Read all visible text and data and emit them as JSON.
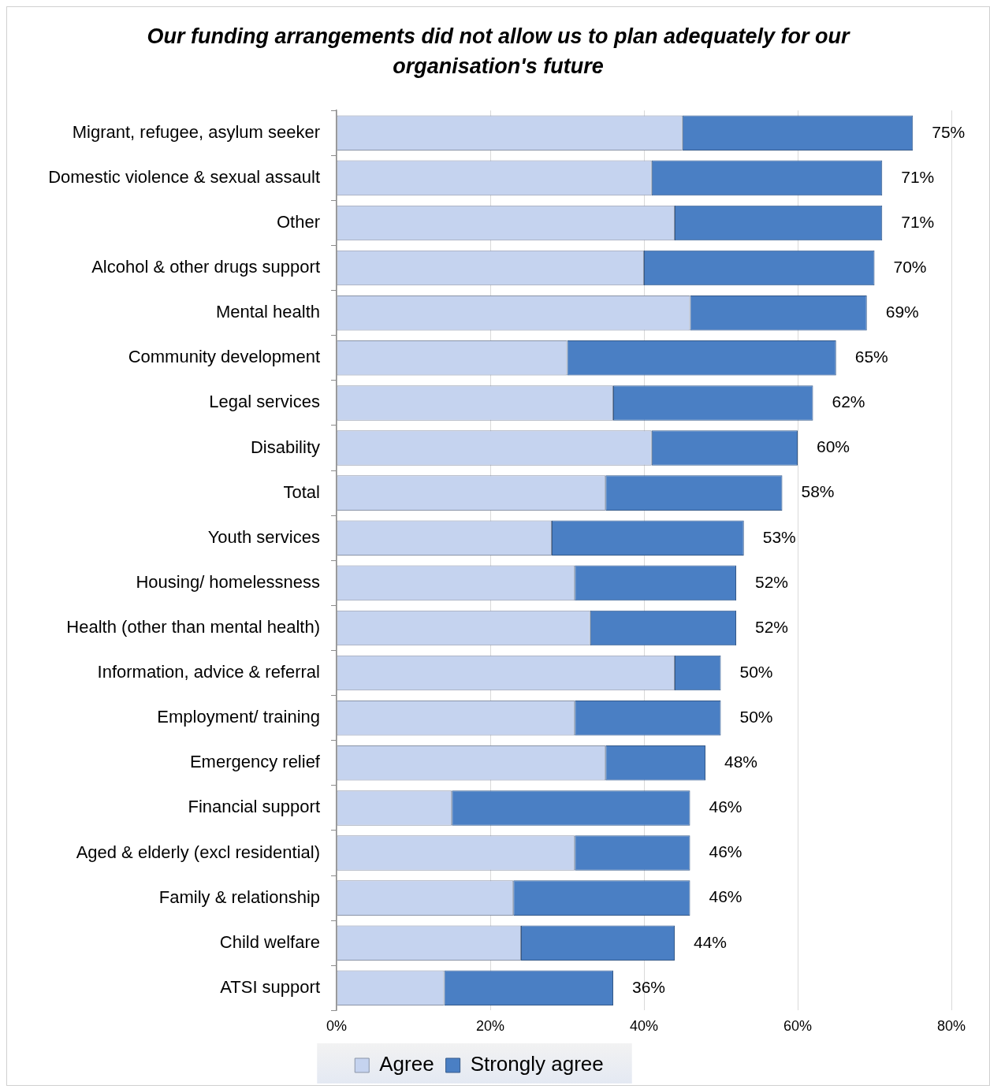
{
  "chart_data": {
    "type": "bar",
    "orientation": "horizontal",
    "stacked": true,
    "title": "Our funding arrangements did not allow us to plan adequately for our organisation's future",
    "categories": [
      "Migrant, refugee, asylum seeker",
      "Domestic violence & sexual assault",
      "Other",
      "Alcohol & other drugs support",
      "Mental health",
      "Community development",
      "Legal services",
      "Disability",
      "Total",
      "Youth services",
      "Housing/ homelessness",
      "Health (other than mental health)",
      "Information, advice & referral",
      "Employment/ training",
      "Emergency relief",
      "Financial support",
      "Aged & elderly (excl residential)",
      "Family & relationship",
      "Child welfare",
      "ATSI support"
    ],
    "series": [
      {
        "name": "Agree",
        "color": "#c5d3ef",
        "values": [
          45,
          41,
          44,
          40,
          46,
          30,
          36,
          41,
          35,
          28,
          31,
          33,
          44,
          31,
          35,
          15,
          31,
          23,
          24,
          14
        ]
      },
      {
        "name": "Strongly agree",
        "color": "#4a7fc4",
        "values": [
          30,
          30,
          27,
          30,
          23,
          35,
          26,
          19,
          23,
          25,
          21,
          19,
          6,
          19,
          13,
          31,
          15,
          23,
          20,
          22
        ]
      }
    ],
    "totals": [
      "75%",
      "71%",
      "71%",
      "70%",
      "69%",
      "65%",
      "62%",
      "60%",
      "58%",
      "53%",
      "52%",
      "52%",
      "50%",
      "50%",
      "48%",
      "46%",
      "46%",
      "46%",
      "44%",
      "36%"
    ],
    "xlim": [
      0,
      80
    ],
    "xticks": [
      {
        "value": 0,
        "label": "0%"
      },
      {
        "value": 20,
        "label": "20%"
      },
      {
        "value": 40,
        "label": "40%"
      },
      {
        "value": 60,
        "label": "60%"
      },
      {
        "value": 80,
        "label": "80%"
      }
    ],
    "grid": "x",
    "legend": "bottom"
  }
}
